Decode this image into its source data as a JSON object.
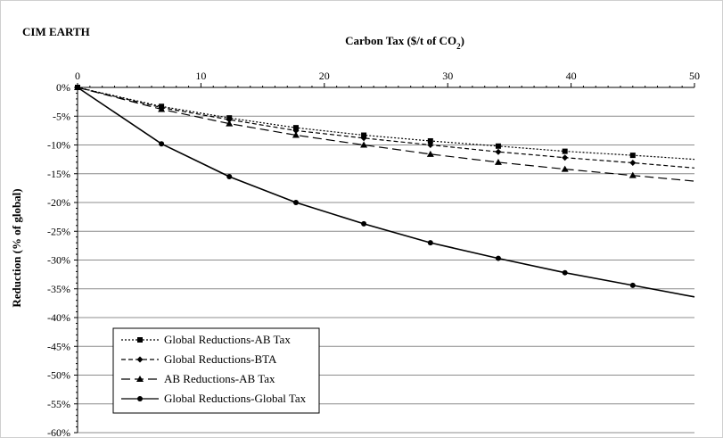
{
  "chart_data": {
    "type": "line",
    "panel_title": "CIM EARTH",
    "xlabel_pre": "Carbon Tax ($/t of CO",
    "xlabel_sub": "2",
    "xlabel_post": ")",
    "ylabel": "Reduction (% of global)",
    "xlim": [
      0,
      50
    ],
    "ylim": [
      -60,
      0
    ],
    "x_ticks": [
      "0",
      "10",
      "20",
      "30",
      "40",
      "50"
    ],
    "y_ticks": [
      "0%",
      "-5%",
      "-10%",
      "-15%",
      "-20%",
      "-25%",
      "-30%",
      "-35%",
      "-40%",
      "-45%",
      "-50%",
      "-55%",
      "-60%"
    ],
    "grid": true,
    "legend_position": "bottom-left",
    "series": [
      {
        "name": "Global Reductions-AB Tax",
        "marker": "square",
        "dash": "2,2",
        "x": [
          0,
          6.8,
          12.3,
          17.7,
          23.2,
          28.6,
          34.1,
          39.5,
          45.0,
          50
        ],
        "y": [
          0,
          -3.3,
          -5.3,
          -7.0,
          -8.3,
          -9.3,
          -10.2,
          -11.1,
          -11.8,
          -12.5
        ]
      },
      {
        "name": "Global Reductions-BTA",
        "marker": "diamond",
        "dash": "5,3",
        "x": [
          0,
          6.8,
          12.3,
          17.7,
          23.2,
          28.6,
          34.1,
          39.5,
          45.0,
          50
        ],
        "y": [
          0,
          -3.5,
          -5.6,
          -7.5,
          -8.8,
          -10.0,
          -11.2,
          -12.2,
          -13.1,
          -14.0
        ]
      },
      {
        "name": "AB Reductions-AB Tax",
        "marker": "triangle",
        "dash": "10,5",
        "x": [
          0,
          6.8,
          12.3,
          17.7,
          23.2,
          28.6,
          34.1,
          39.5,
          45.0,
          50
        ],
        "y": [
          0,
          -3.8,
          -6.3,
          -8.3,
          -10.0,
          -11.6,
          -13.0,
          -14.2,
          -15.3,
          -16.3
        ]
      },
      {
        "name": "Global Reductions-Global Tax",
        "marker": "circle",
        "dash": "",
        "x": [
          0,
          6.8,
          12.3,
          17.7,
          23.2,
          28.6,
          34.1,
          39.5,
          45.0,
          50
        ],
        "y": [
          0,
          -9.8,
          -15.5,
          -20.0,
          -23.7,
          -27.0,
          -29.7,
          -32.2,
          -34.4,
          -36.4
        ]
      }
    ]
  }
}
